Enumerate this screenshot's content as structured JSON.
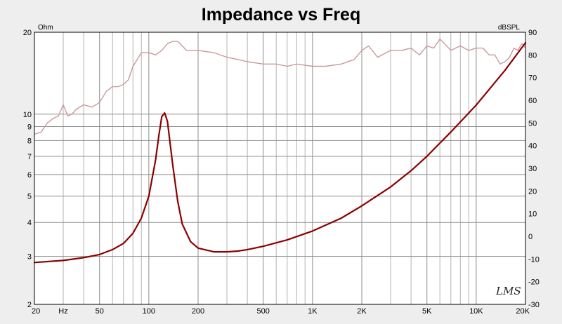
{
  "chart_data": {
    "type": "line",
    "title": "Impedance vs Freq",
    "left_axis_unit": "Ohm",
    "right_axis_unit": "dBSPL",
    "x_scale": "log",
    "xlim": [
      20,
      20000
    ],
    "x_tick_labels": [
      {
        "value": 20,
        "label": "20"
      },
      {
        "value": 30,
        "label": "Hz"
      },
      {
        "value": 50,
        "label": "50"
      },
      {
        "value": 100,
        "label": "100"
      },
      {
        "value": 200,
        "label": "200"
      },
      {
        "value": 500,
        "label": "500"
      },
      {
        "value": 1000,
        "label": "1K"
      },
      {
        "value": 2000,
        "label": "2K"
      },
      {
        "value": 5000,
        "label": "5K"
      },
      {
        "value": 10000,
        "label": "10K"
      },
      {
        "value": 20000,
        "label": "20K"
      }
    ],
    "left_y_scale": "log",
    "left_ylim": [
      2,
      20
    ],
    "left_y_ticks": [
      2,
      3,
      4,
      5,
      6,
      7,
      8,
      9,
      10,
      20
    ],
    "right_ylim": [
      -30,
      90
    ],
    "right_y_ticks": [
      -30,
      -20,
      -10,
      0,
      10,
      20,
      30,
      40,
      50,
      60,
      70,
      80,
      90
    ],
    "grid": true,
    "watermark": "LMS",
    "series": [
      {
        "axis": "left",
        "color": "#8b0000",
        "x": [
          20,
          30,
          40,
          50,
          60,
          70,
          80,
          90,
          100,
          110,
          115,
          120,
          125,
          130,
          135,
          140,
          150,
          160,
          180,
          200,
          250,
          300,
          350,
          400,
          500,
          700,
          1000,
          1500,
          2000,
          3000,
          4000,
          5000,
          7000,
          10000,
          15000,
          20000
        ],
        "values": [
          2.85,
          2.9,
          2.97,
          3.05,
          3.18,
          3.35,
          3.65,
          4.15,
          5.0,
          6.8,
          8.3,
          9.8,
          10.1,
          9.4,
          7.8,
          6.5,
          4.8,
          3.95,
          3.4,
          3.22,
          3.12,
          3.12,
          3.14,
          3.18,
          3.27,
          3.45,
          3.72,
          4.15,
          4.6,
          5.4,
          6.2,
          7.0,
          8.6,
          10.8,
          14.5,
          18.3
        ]
      },
      {
        "axis": "right",
        "color": "#c99a9a",
        "x": [
          20,
          22,
          24,
          26,
          28,
          30,
          32,
          34,
          36,
          40,
          45,
          50,
          55,
          60,
          65,
          70,
          75,
          80,
          85,
          90,
          100,
          110,
          120,
          130,
          140,
          150,
          160,
          170,
          180,
          200,
          250,
          300,
          350,
          400,
          500,
          600,
          700,
          800,
          1000,
          1200,
          1500,
          1800,
          2000,
          2200,
          2500,
          3000,
          3500,
          4000,
          4500,
          5000,
          5500,
          6000,
          7000,
          8000,
          9000,
          10000,
          11000,
          12000,
          13000,
          14000,
          15000,
          16000,
          17000,
          18000,
          19000,
          20000
        ],
        "values": [
          45,
          46,
          50,
          52,
          53,
          58,
          53,
          54,
          56,
          58,
          57,
          59,
          64,
          66,
          66,
          67,
          69,
          75,
          78,
          81,
          81,
          80,
          82,
          85,
          86,
          86,
          84,
          82,
          82,
          82,
          81,
          79,
          78,
          77,
          76,
          76,
          75,
          76,
          75,
          75,
          76,
          78,
          82,
          84,
          79,
          82,
          82,
          83,
          80,
          84,
          83,
          87,
          82,
          84,
          82,
          83,
          83,
          80,
          80,
          76,
          77,
          79,
          83,
          82,
          85,
          83
        ]
      }
    ]
  }
}
